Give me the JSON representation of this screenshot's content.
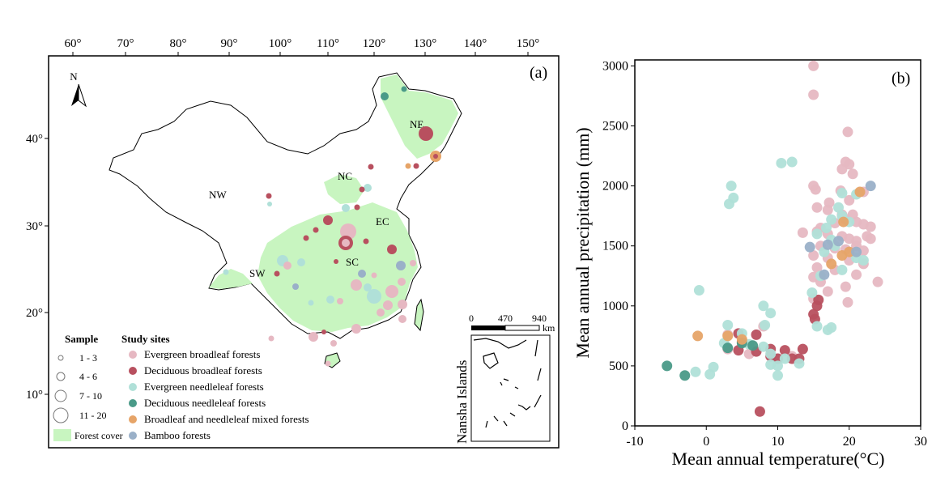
{
  "map_panel": {
    "label": "(a)",
    "north_label": "N",
    "lon_ticks": [
      "60°",
      "70°",
      "80°",
      "90°",
      "100°",
      "110°",
      "120°",
      "130°",
      "140°",
      "150°"
    ],
    "lat_ticks": [
      "40°",
      "30°",
      "20°",
      "10°"
    ],
    "regions": [
      "NE",
      "NC",
      "NW",
      "EC",
      "SC",
      "SW"
    ],
    "scalebar": {
      "ticks": [
        "0",
        "470",
        "940"
      ],
      "unit": "km"
    },
    "inset_label": "Nansha Islands",
    "legend": {
      "sample_title": "Sample",
      "sample_sizes": [
        "1 - 3",
        "4 - 6",
        "7 - 10",
        "11 - 20"
      ],
      "sites_title": "Study sites",
      "sites": [
        {
          "label": "Evergreen broadleaf forests",
          "color": "#e6b8c2"
        },
        {
          "label": "Deciduous broadleaf forests",
          "color": "#b8505f"
        },
        {
          "label": "Evergreen needleleaf forests",
          "color": "#b0e0d8"
        },
        {
          "label": "Deciduous needleleaf forests",
          "color": "#4a9a88"
        },
        {
          "label": "Broadleaf and needleleaf mixed forests",
          "color": "#e6a468"
        },
        {
          "label": "Bamboo forests",
          "color": "#9ab0c8"
        }
      ],
      "forest_cover_label": "Forest cover",
      "forest_cover_color": "#c8f5c0"
    }
  },
  "chart_data": {
    "type": "scatter",
    "label": "(b)",
    "xlabel": "Mean annual temperature(°C)",
    "ylabel": "Mean annual precipitation (mm)",
    "xlim": [
      -10,
      30
    ],
    "ylim": [
      0,
      3050
    ],
    "xticks": [
      -10,
      0,
      10,
      20,
      30
    ],
    "yticks": [
      0,
      500,
      1000,
      1500,
      2000,
      2500,
      3000
    ],
    "grid": false,
    "series": [
      {
        "name": "Evergreen broadleaf forests",
        "color": "#e6b8c2",
        "points": [
          [
            15,
            3000
          ],
          [
            15,
            2760
          ],
          [
            19.8,
            2450
          ],
          [
            19.5,
            2200
          ],
          [
            20,
            2180
          ],
          [
            19,
            2140
          ],
          [
            20.5,
            2100
          ],
          [
            15,
            2000
          ],
          [
            15.3,
            1970
          ],
          [
            18.8,
            1960
          ],
          [
            22,
            1950
          ],
          [
            20,
            1880
          ],
          [
            17.2,
            1860
          ],
          [
            15.5,
            1820
          ],
          [
            13.5,
            1610
          ],
          [
            17,
            1800
          ],
          [
            19,
            1760
          ],
          [
            20.5,
            1760
          ],
          [
            16,
            1650
          ],
          [
            18,
            1690
          ],
          [
            19.5,
            1720
          ],
          [
            21,
            1700
          ],
          [
            22,
            1680
          ],
          [
            23,
            1660
          ],
          [
            15.5,
            1620
          ],
          [
            17,
            1600
          ],
          [
            19,
            1580
          ],
          [
            20,
            1560
          ],
          [
            21,
            1540
          ],
          [
            22.5,
            1580
          ],
          [
            23,
            1560
          ],
          [
            16,
            1500
          ],
          [
            18,
            1480
          ],
          [
            19.5,
            1470
          ],
          [
            21,
            1500
          ],
          [
            22,
            1460
          ],
          [
            15,
            1420
          ],
          [
            17,
            1400
          ],
          [
            20,
            1380
          ],
          [
            22,
            1350
          ],
          [
            15.5,
            1320
          ],
          [
            18,
            1300
          ],
          [
            21,
            1260
          ],
          [
            15,
            1240
          ],
          [
            16,
            1200
          ],
          [
            24,
            1200
          ],
          [
            19.5,
            1160
          ],
          [
            17,
            1120
          ],
          [
            15,
            1060
          ],
          [
            19.8,
            1030
          ],
          [
            8,
            830
          ],
          [
            3,
            760
          ],
          [
            10,
            560
          ],
          [
            3,
            640
          ],
          [
            6,
            600
          ],
          [
            12,
            580
          ]
        ]
      },
      {
        "name": "Deciduous broadleaf forests",
        "color": "#b8505f",
        "points": [
          [
            15,
            930
          ],
          [
            15.2,
            890
          ],
          [
            15.5,
            1000
          ],
          [
            15.7,
            1050
          ],
          [
            4.5,
            770
          ],
          [
            7,
            760
          ],
          [
            5,
            700
          ],
          [
            9,
            640
          ],
          [
            11,
            630
          ],
          [
            13.5,
            640
          ],
          [
            4.5,
            630
          ],
          [
            7,
            620
          ],
          [
            9,
            580
          ],
          [
            10,
            560
          ],
          [
            12,
            560
          ],
          [
            13,
            560
          ],
          [
            7.5,
            120
          ]
        ]
      },
      {
        "name": "Evergreen needleleaf forests",
        "color": "#b0e0d8",
        "points": [
          [
            3.5,
            2000
          ],
          [
            3.2,
            1850
          ],
          [
            3.8,
            1900
          ],
          [
            10.5,
            2190
          ],
          [
            12,
            2200
          ],
          [
            -1,
            1130
          ],
          [
            19,
            1940
          ],
          [
            21,
            1930
          ],
          [
            18.5,
            1820
          ],
          [
            19,
            1750
          ],
          [
            17.5,
            1720
          ],
          [
            20,
            1700
          ],
          [
            16.8,
            1650
          ],
          [
            15.5,
            1600
          ],
          [
            17.5,
            1550
          ],
          [
            18,
            1500
          ],
          [
            16.5,
            1450
          ],
          [
            21,
            1400
          ],
          [
            22,
            1380
          ],
          [
            19,
            1300
          ],
          [
            16,
            1250
          ],
          [
            14.8,
            1110
          ],
          [
            8,
            1000
          ],
          [
            15.5,
            830
          ],
          [
            17,
            800
          ],
          [
            17.5,
            820
          ],
          [
            9,
            940
          ],
          [
            8.2,
            840
          ],
          [
            3,
            840
          ],
          [
            5,
            770
          ],
          [
            2.5,
            690
          ],
          [
            6,
            680
          ],
          [
            8,
            660
          ],
          [
            9,
            510
          ],
          [
            10,
            500
          ],
          [
            11,
            560
          ],
          [
            13,
            520
          ],
          [
            -1.5,
            450
          ],
          [
            0.5,
            430
          ],
          [
            1,
            490
          ],
          [
            9,
            600
          ],
          [
            10,
            420
          ]
        ]
      },
      {
        "name": "Deciduous needleleaf forests",
        "color": "#4a9a88",
        "points": [
          [
            -5.5,
            500
          ],
          [
            -3,
            420
          ],
          [
            3,
            650
          ],
          [
            5,
            690
          ],
          [
            6.5,
            670
          ]
        ]
      },
      {
        "name": "Broadleaf and needleleaf mixed forests",
        "color": "#e6a468",
        "points": [
          [
            -1.2,
            750
          ],
          [
            3,
            750
          ],
          [
            5,
            720
          ],
          [
            17.5,
            1350
          ],
          [
            19,
            1420
          ],
          [
            20,
            1450
          ],
          [
            21.5,
            1950
          ],
          [
            19.2,
            1700
          ]
        ]
      },
      {
        "name": "Bamboo forests",
        "color": "#9ab0c8",
        "points": [
          [
            14.5,
            1490
          ],
          [
            16.5,
            1260
          ],
          [
            17,
            1510
          ],
          [
            18.5,
            1540
          ],
          [
            21,
            1450
          ],
          [
            23,
            2000
          ]
        ]
      }
    ]
  }
}
